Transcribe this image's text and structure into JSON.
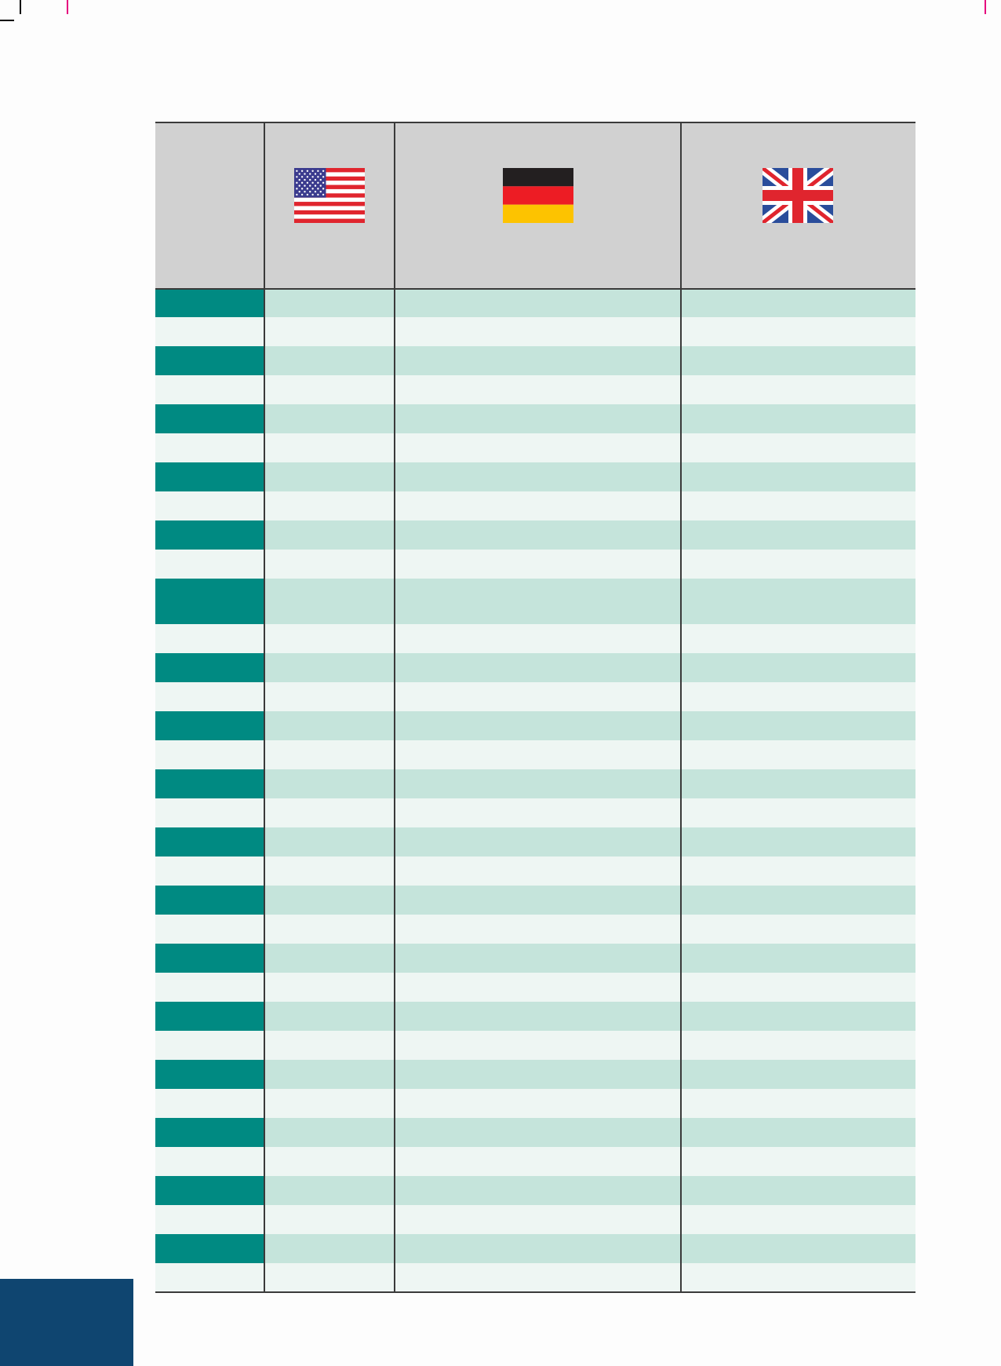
{
  "colors": {
    "header_bg": "#d1d1d1",
    "label_dark": "#008a82",
    "label_light": "#eef6f3",
    "row_dark": "#c5e4db",
    "row_light": "#eef6f3",
    "page_tab": "#0f4570",
    "crop_marks": "#000000",
    "crop_marks_alt": "#e5007e"
  },
  "header": {
    "flags": [
      "us-flag-icon",
      "de-flag-icon",
      "gb-flag-icon"
    ]
  },
  "table": {
    "row_count": 34,
    "tall_row_index": 10
  }
}
